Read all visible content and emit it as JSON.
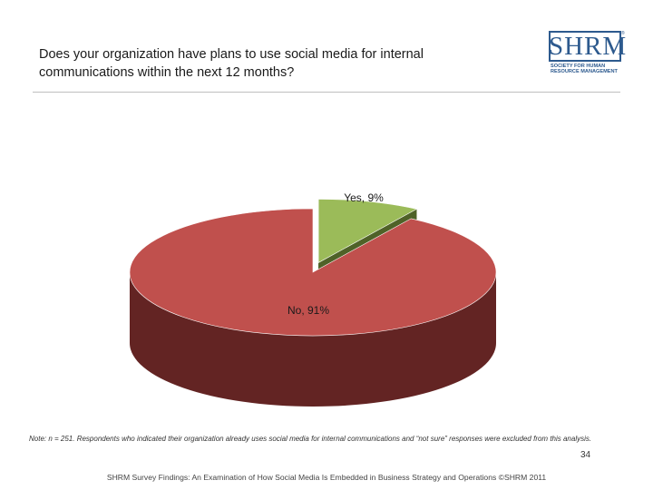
{
  "title": "Does your organization have plans to use social media for internal communications within the next 12 months?",
  "logo": {
    "word": "SHRM",
    "registered": "®",
    "subtitle": "SOCIETY FOR HUMAN RESOURCE MANAGEMENT"
  },
  "chart_data": {
    "type": "pie",
    "three_d": true,
    "slices": [
      {
        "label": "Yes",
        "value": 9,
        "data_label": "Yes, 9%",
        "color": "#9bbb59",
        "side_color": "#4f6228",
        "exploded": true
      },
      {
        "label": "No",
        "value": 91,
        "data_label": "No, 91%",
        "color": "#c0504d",
        "side_color": "#632423",
        "exploded": false
      }
    ]
  },
  "note": "Note: n = 251. Respondents who indicated their organization already uses social media for internal communications and “not sure” responses were excluded from this analysis.",
  "page_number": "34",
  "footer": "SHRM Survey Findings: An Examination of How Social Media Is Embedded in Business Strategy and Operations ©SHRM 2011"
}
